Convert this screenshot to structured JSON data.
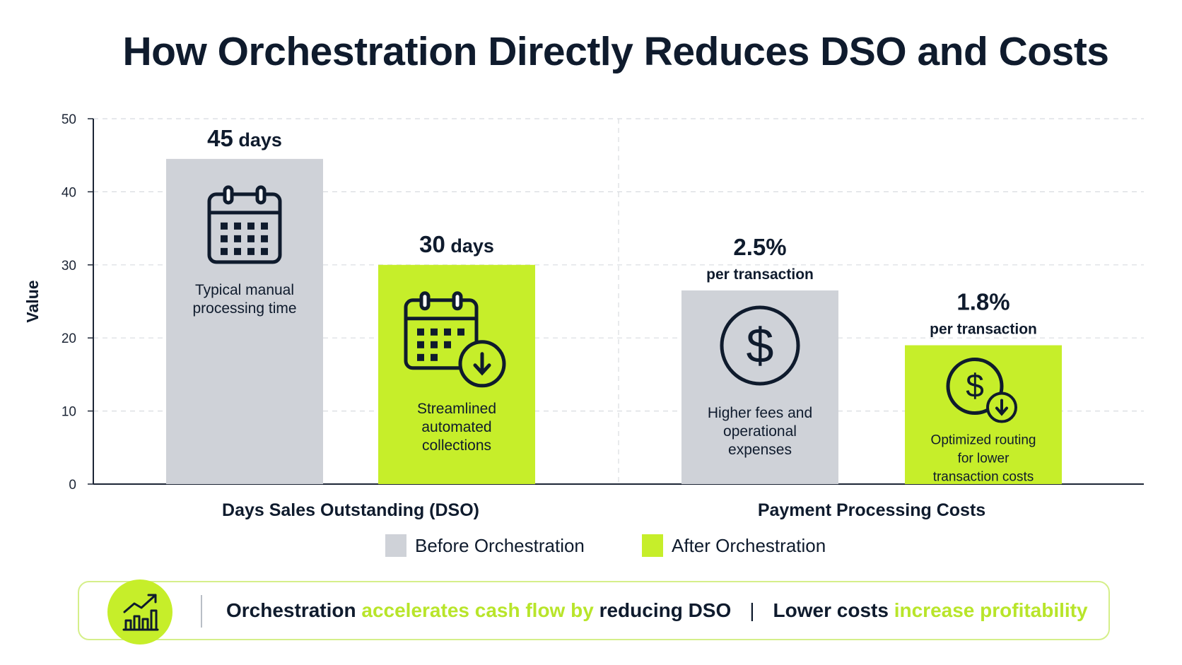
{
  "title": "How Orchestration Directly Reduces DSO and Costs",
  "chart_data": {
    "type": "bar",
    "title": "How Orchestration Directly Reduces DSO and Costs",
    "ylabel": "Value",
    "xlabel": "",
    "ylim": [
      0,
      50
    ],
    "yticks": [
      0,
      10,
      20,
      30,
      40,
      50
    ],
    "grid": true,
    "categories": [
      "Days Sales Outstanding (DSO)",
      "Payment Processing Costs"
    ],
    "series": [
      {
        "name": "Before Orchestration",
        "color": "#cfd2d8",
        "values": [
          44.5,
          26.5
        ]
      },
      {
        "name": "After Orchestration",
        "color": "#c6ee2a",
        "values": [
          30,
          19
        ]
      }
    ],
    "legend_position": "bottom",
    "annotations": [
      {
        "value": "45",
        "unit": " days",
        "sub": "",
        "desc": [
          "Typical manual",
          "processing time"
        ],
        "icon": "calendar-icon"
      },
      {
        "value": "30",
        "unit": " days",
        "sub": "",
        "desc": [
          "Streamlined",
          "automated",
          "collections"
        ],
        "icon": "calendar-down-icon"
      },
      {
        "value": "2.5%",
        "unit": "",
        "sub": "per transaction",
        "desc": [
          "Higher fees and",
          "operational",
          "expenses"
        ],
        "icon": "dollar-circle-icon"
      },
      {
        "value": "1.8%",
        "unit": "",
        "sub": "per transaction",
        "desc": [
          "Optimized routing",
          "for lower",
          "transaction costs"
        ],
        "icon": "dollar-down-icon"
      }
    ]
  },
  "banner": {
    "icon": "growth-chart-icon",
    "part1": "Orchestration",
    "part2": " accelerates cash flow by",
    "part3": " reducing DSO",
    "separator": "|",
    "part4": "Lower costs",
    "part5": " increase profitability"
  }
}
